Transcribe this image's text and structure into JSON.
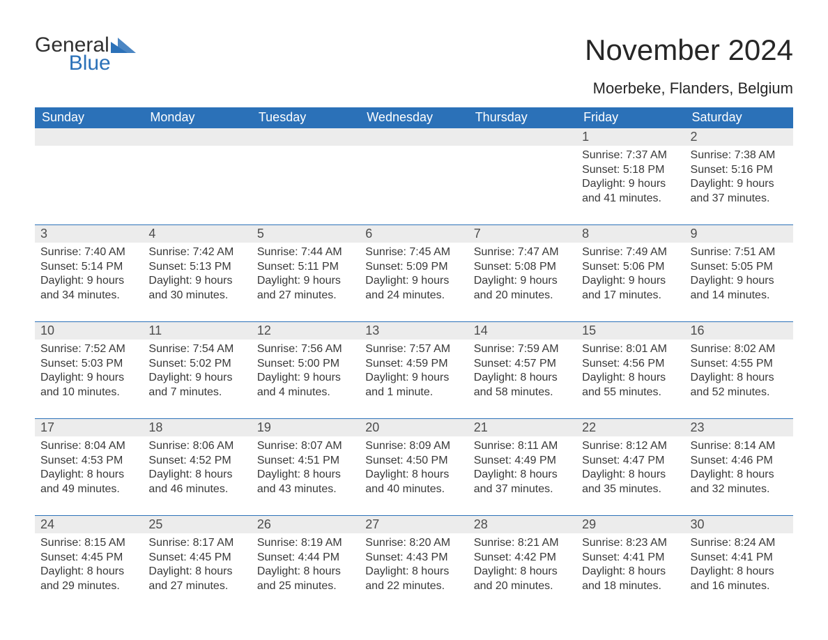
{
  "brand": {
    "word1": "General",
    "word2": "Blue",
    "accent_color": "#2b71b8"
  },
  "title": "November 2024",
  "location": "Moerbeke, Flanders, Belgium",
  "colors": {
    "header_bg": "#2b71b8",
    "header_text": "#ffffff",
    "daynum_bg": "#ececec",
    "daynum_text": "#4d4d4d",
    "body_text": "#383838",
    "rule": "#2b71b8",
    "page_bg": "#ffffff"
  },
  "typography": {
    "title_fontsize": 42,
    "subtitle_fontsize": 22,
    "dow_fontsize": 18,
    "daynum_fontsize": 18,
    "body_fontsize": 16
  },
  "days_of_week": [
    "Sunday",
    "Monday",
    "Tuesday",
    "Wednesday",
    "Thursday",
    "Friday",
    "Saturday"
  ],
  "weeks": [
    [
      null,
      null,
      null,
      null,
      null,
      {
        "n": "1",
        "sunrise": "Sunrise: 7:37 AM",
        "sunset": "Sunset: 5:18 PM",
        "daylight": "Daylight: 9 hours and 41 minutes."
      },
      {
        "n": "2",
        "sunrise": "Sunrise: 7:38 AM",
        "sunset": "Sunset: 5:16 PM",
        "daylight": "Daylight: 9 hours and 37 minutes."
      }
    ],
    [
      {
        "n": "3",
        "sunrise": "Sunrise: 7:40 AM",
        "sunset": "Sunset: 5:14 PM",
        "daylight": "Daylight: 9 hours and 34 minutes."
      },
      {
        "n": "4",
        "sunrise": "Sunrise: 7:42 AM",
        "sunset": "Sunset: 5:13 PM",
        "daylight": "Daylight: 9 hours and 30 minutes."
      },
      {
        "n": "5",
        "sunrise": "Sunrise: 7:44 AM",
        "sunset": "Sunset: 5:11 PM",
        "daylight": "Daylight: 9 hours and 27 minutes."
      },
      {
        "n": "6",
        "sunrise": "Sunrise: 7:45 AM",
        "sunset": "Sunset: 5:09 PM",
        "daylight": "Daylight: 9 hours and 24 minutes."
      },
      {
        "n": "7",
        "sunrise": "Sunrise: 7:47 AM",
        "sunset": "Sunset: 5:08 PM",
        "daylight": "Daylight: 9 hours and 20 minutes."
      },
      {
        "n": "8",
        "sunrise": "Sunrise: 7:49 AM",
        "sunset": "Sunset: 5:06 PM",
        "daylight": "Daylight: 9 hours and 17 minutes."
      },
      {
        "n": "9",
        "sunrise": "Sunrise: 7:51 AM",
        "sunset": "Sunset: 5:05 PM",
        "daylight": "Daylight: 9 hours and 14 minutes."
      }
    ],
    [
      {
        "n": "10",
        "sunrise": "Sunrise: 7:52 AM",
        "sunset": "Sunset: 5:03 PM",
        "daylight": "Daylight: 9 hours and 10 minutes."
      },
      {
        "n": "11",
        "sunrise": "Sunrise: 7:54 AM",
        "sunset": "Sunset: 5:02 PM",
        "daylight": "Daylight: 9 hours and 7 minutes."
      },
      {
        "n": "12",
        "sunrise": "Sunrise: 7:56 AM",
        "sunset": "Sunset: 5:00 PM",
        "daylight": "Daylight: 9 hours and 4 minutes."
      },
      {
        "n": "13",
        "sunrise": "Sunrise: 7:57 AM",
        "sunset": "Sunset: 4:59 PM",
        "daylight": "Daylight: 9 hours and 1 minute."
      },
      {
        "n": "14",
        "sunrise": "Sunrise: 7:59 AM",
        "sunset": "Sunset: 4:57 PM",
        "daylight": "Daylight: 8 hours and 58 minutes."
      },
      {
        "n": "15",
        "sunrise": "Sunrise: 8:01 AM",
        "sunset": "Sunset: 4:56 PM",
        "daylight": "Daylight: 8 hours and 55 minutes."
      },
      {
        "n": "16",
        "sunrise": "Sunrise: 8:02 AM",
        "sunset": "Sunset: 4:55 PM",
        "daylight": "Daylight: 8 hours and 52 minutes."
      }
    ],
    [
      {
        "n": "17",
        "sunrise": "Sunrise: 8:04 AM",
        "sunset": "Sunset: 4:53 PM",
        "daylight": "Daylight: 8 hours and 49 minutes."
      },
      {
        "n": "18",
        "sunrise": "Sunrise: 8:06 AM",
        "sunset": "Sunset: 4:52 PM",
        "daylight": "Daylight: 8 hours and 46 minutes."
      },
      {
        "n": "19",
        "sunrise": "Sunrise: 8:07 AM",
        "sunset": "Sunset: 4:51 PM",
        "daylight": "Daylight: 8 hours and 43 minutes."
      },
      {
        "n": "20",
        "sunrise": "Sunrise: 8:09 AM",
        "sunset": "Sunset: 4:50 PM",
        "daylight": "Daylight: 8 hours and 40 minutes."
      },
      {
        "n": "21",
        "sunrise": "Sunrise: 8:11 AM",
        "sunset": "Sunset: 4:49 PM",
        "daylight": "Daylight: 8 hours and 37 minutes."
      },
      {
        "n": "22",
        "sunrise": "Sunrise: 8:12 AM",
        "sunset": "Sunset: 4:47 PM",
        "daylight": "Daylight: 8 hours and 35 minutes."
      },
      {
        "n": "23",
        "sunrise": "Sunrise: 8:14 AM",
        "sunset": "Sunset: 4:46 PM",
        "daylight": "Daylight: 8 hours and 32 minutes."
      }
    ],
    [
      {
        "n": "24",
        "sunrise": "Sunrise: 8:15 AM",
        "sunset": "Sunset: 4:45 PM",
        "daylight": "Daylight: 8 hours and 29 minutes."
      },
      {
        "n": "25",
        "sunrise": "Sunrise: 8:17 AM",
        "sunset": "Sunset: 4:45 PM",
        "daylight": "Daylight: 8 hours and 27 minutes."
      },
      {
        "n": "26",
        "sunrise": "Sunrise: 8:19 AM",
        "sunset": "Sunset: 4:44 PM",
        "daylight": "Daylight: 8 hours and 25 minutes."
      },
      {
        "n": "27",
        "sunrise": "Sunrise: 8:20 AM",
        "sunset": "Sunset: 4:43 PM",
        "daylight": "Daylight: 8 hours and 22 minutes."
      },
      {
        "n": "28",
        "sunrise": "Sunrise: 8:21 AM",
        "sunset": "Sunset: 4:42 PM",
        "daylight": "Daylight: 8 hours and 20 minutes."
      },
      {
        "n": "29",
        "sunrise": "Sunrise: 8:23 AM",
        "sunset": "Sunset: 4:41 PM",
        "daylight": "Daylight: 8 hours and 18 minutes."
      },
      {
        "n": "30",
        "sunrise": "Sunrise: 8:24 AM",
        "sunset": "Sunset: 4:41 PM",
        "daylight": "Daylight: 8 hours and 16 minutes."
      }
    ]
  ]
}
